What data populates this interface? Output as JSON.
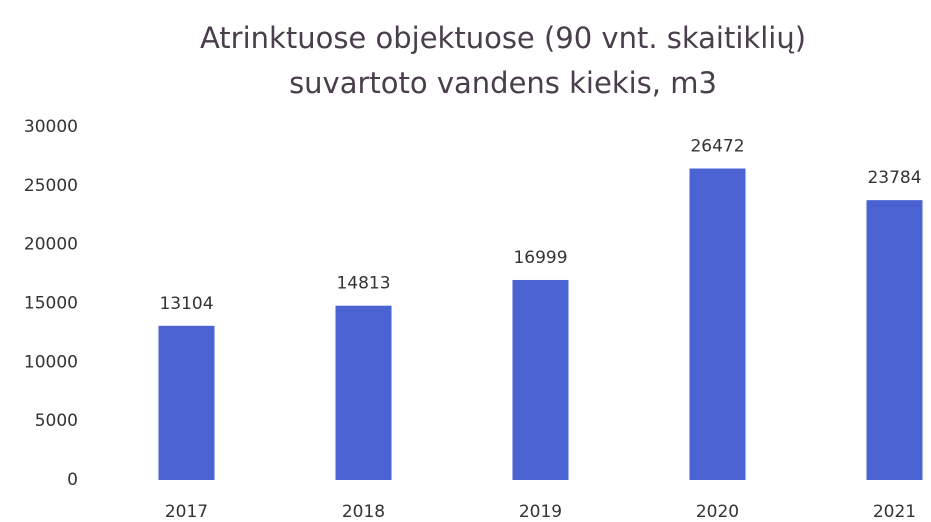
{
  "chart_data": {
    "type": "bar",
    "title": [
      "Atrinktuose objektuose (90 vnt. skaitiklių)",
      "suvartoto vandens kiekis, m3"
    ],
    "categories": [
      "2017",
      "2018",
      "2019",
      "2020",
      "2021"
    ],
    "values": [
      13104,
      14813,
      16999,
      26472,
      23784
    ],
    "color": "#4a62d2",
    "ylim": [
      0,
      30000
    ],
    "yticks": [
      0,
      5000,
      10000,
      15000,
      20000,
      25000,
      30000
    ],
    "grid": false
  }
}
